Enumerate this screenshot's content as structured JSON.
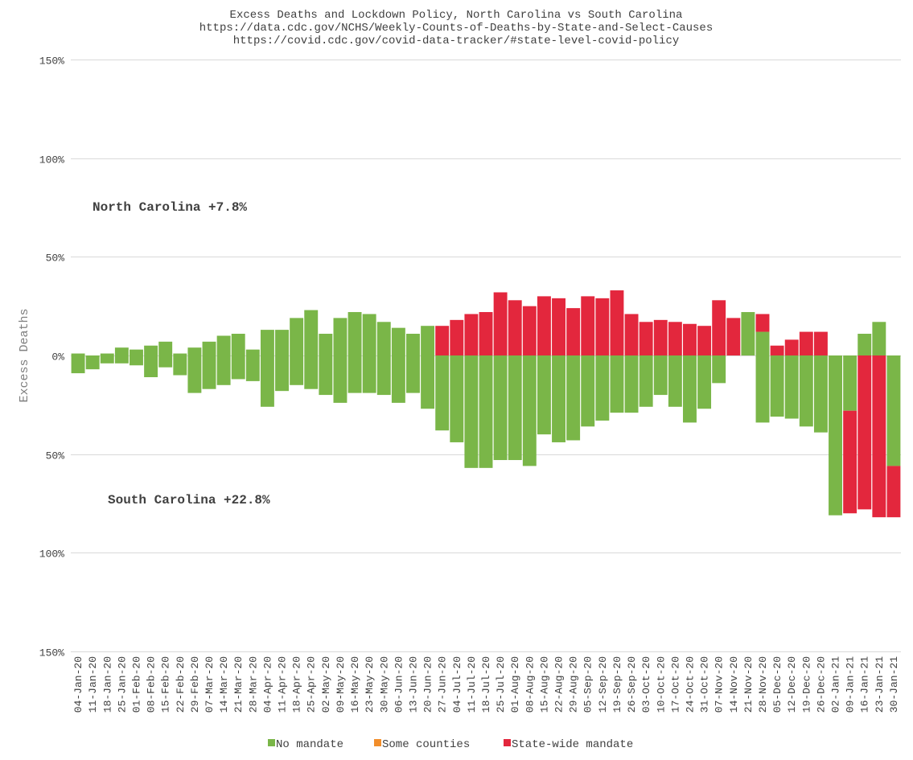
{
  "chart_data": {
    "type": "bar",
    "title": "Excess Deaths and Lockdown Policy, North Carolina vs South Carolina",
    "subtitle_lines": [
      "https://data.cdc.gov/NCHS/Weekly-Counts-of-Deaths-by-State-and-Select-Causes",
      "https://covid.cdc.gov/covid-data-tracker/#state-level-covid-policy"
    ],
    "ylabel": "Excess Deaths",
    "ylim": [
      -150,
      150
    ],
    "yticks": [
      {
        "value": 150,
        "label": "150%"
      },
      {
        "value": 100,
        "label": "100%"
      },
      {
        "value": 50,
        "label": "50%"
      },
      {
        "value": 0,
        "label": "0%"
      },
      {
        "value": -50,
        "label": "50%"
      },
      {
        "value": -100,
        "label": "100%"
      },
      {
        "value": -150,
        "label": "150%"
      }
    ],
    "categories": [
      "04-Jan-20",
      "11-Jan-20",
      "18-Jan-20",
      "25-Jan-20",
      "01-Feb-20",
      "08-Feb-20",
      "15-Feb-20",
      "22-Feb-20",
      "29-Feb-20",
      "07-Mar-20",
      "14-Mar-20",
      "21-Mar-20",
      "28-Mar-20",
      "04-Apr-20",
      "11-Apr-20",
      "18-Apr-20",
      "25-Apr-20",
      "02-May-20",
      "09-May-20",
      "16-May-20",
      "23-May-20",
      "30-May-20",
      "06-Jun-20",
      "13-Jun-20",
      "20-Jun-20",
      "27-Jun-20",
      "04-Jul-20",
      "11-Jul-20",
      "18-Jul-20",
      "25-Jul-20",
      "01-Aug-20",
      "08-Aug-20",
      "15-Aug-20",
      "22-Aug-20",
      "29-Aug-20",
      "05-Sep-20",
      "12-Sep-20",
      "19-Sep-20",
      "26-Sep-20",
      "03-Oct-20",
      "10-Oct-20",
      "17-Oct-20",
      "24-Oct-20",
      "31-Oct-20",
      "07-Nov-20",
      "14-Nov-20",
      "21-Nov-20",
      "28-Nov-20",
      "05-Dec-20",
      "12-Dec-20",
      "19-Dec-20",
      "26-Dec-20",
      "02-Jan-21",
      "09-Jan-21",
      "16-Jan-21",
      "23-Jan-21",
      "30-Jan-21"
    ],
    "north_carolina": {
      "label": "North Carolina +7.8%",
      "values": [
        1,
        -1,
        1,
        4,
        3,
        5,
        7,
        1,
        4,
        7,
        10,
        11,
        3,
        13,
        13,
        19,
        23,
        11,
        19,
        22,
        21,
        17,
        14,
        11,
        15,
        15,
        18,
        21,
        22,
        32,
        28,
        25,
        30,
        29,
        24,
        30,
        29,
        33,
        21,
        17,
        18,
        17,
        16,
        15,
        28,
        19,
        22,
        21,
        5,
        8,
        12,
        12,
        0,
        0,
        11,
        17,
        0
      ],
      "policy": [
        "none",
        "none",
        "none",
        "none",
        "none",
        "none",
        "none",
        "none",
        "none",
        "none",
        "none",
        "none",
        "none",
        "none",
        "none",
        "none",
        "none",
        "none",
        "none",
        "none",
        "none",
        "none",
        "none",
        "none",
        "none",
        "statewide",
        "statewide",
        "statewide",
        "statewide",
        "statewide",
        "statewide",
        "statewide",
        "statewide",
        "statewide",
        "statewide",
        "statewide",
        "statewide",
        "statewide",
        "statewide",
        "statewide",
        "statewide",
        "statewide",
        "statewide",
        "statewide",
        "statewide",
        "statewide",
        "none",
        "mixed",
        "statewide",
        "statewide",
        "statewide",
        "statewide",
        "none",
        "none",
        "none",
        "none",
        "none"
      ],
      "mixed_split": {
        "index": 47,
        "none_value": 12
      }
    },
    "south_carolina": {
      "label": "South Carolina +22.8%",
      "values": [
        -9,
        -7,
        -4,
        -4,
        -5,
        -11,
        -6,
        -10,
        -19,
        -17,
        -15,
        -12,
        -13,
        -26,
        -18,
        -15,
        -17,
        -20,
        -24,
        -19,
        -19,
        -20,
        -24,
        -19,
        -27,
        -38,
        -44,
        -57,
        -57,
        -53,
        -53,
        -56,
        -40,
        -44,
        -43,
        -36,
        -33,
        -29,
        -29,
        -26,
        -20,
        -26,
        -34,
        -27,
        -14,
        0,
        0,
        -34,
        -31,
        -32,
        -36,
        -39,
        -81,
        -80,
        -78,
        -82,
        -82
      ],
      "policy": [
        "none",
        "none",
        "none",
        "none",
        "none",
        "none",
        "none",
        "none",
        "none",
        "none",
        "none",
        "none",
        "none",
        "none",
        "none",
        "none",
        "none",
        "none",
        "none",
        "none",
        "none",
        "none",
        "none",
        "none",
        "none",
        "none",
        "none",
        "none",
        "none",
        "none",
        "none",
        "none",
        "none",
        "none",
        "none",
        "none",
        "none",
        "none",
        "none",
        "none",
        "none",
        "none",
        "none",
        "none",
        "none",
        "none",
        "none",
        "none",
        "none",
        "none",
        "none",
        "none",
        "none",
        "mixed",
        "statewide",
        "statewide",
        "mixed"
      ],
      "mixed_splits": [
        {
          "index": 53,
          "none_value": -28
        },
        {
          "index": 56,
          "none_value": -56
        }
      ]
    },
    "legend": [
      {
        "label": "No mandate",
        "color": "#7ab648"
      },
      {
        "label": "Some counties",
        "color": "#f28e2b"
      },
      {
        "label": "State-wide mandate",
        "color": "#e3273d"
      }
    ]
  }
}
